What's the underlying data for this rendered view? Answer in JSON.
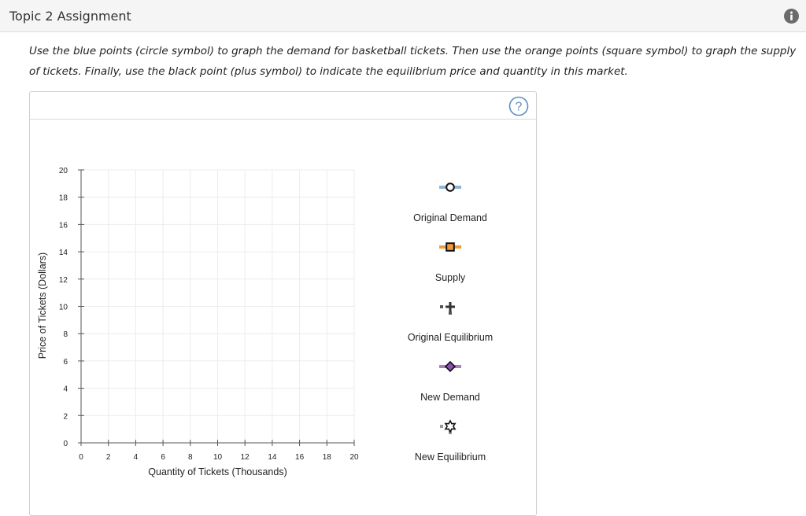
{
  "header": {
    "title": "Topic 2 Assignment",
    "info_icon": "info-icon"
  },
  "instructions": {
    "text": "Use the blue points (circle symbol) to graph the demand for basketball tickets. Then use the orange points (square symbol) to graph the supply of tickets. Finally, use the black point (plus symbol) to indicate the equilibrium price and quantity in this market."
  },
  "panel": {
    "help_icon": "question-circle-icon",
    "help_glyph": "?"
  },
  "chart_data": {
    "type": "scatter",
    "title": "",
    "xlabel": "Quantity of Tickets (Thousands)",
    "ylabel": "Price of Tickets (Dollars)",
    "xlim": [
      0,
      20
    ],
    "ylim": [
      0,
      20
    ],
    "xticks": [
      0,
      2,
      4,
      6,
      8,
      10,
      12,
      14,
      16,
      18,
      20
    ],
    "yticks": [
      0,
      2,
      4,
      6,
      8,
      10,
      12,
      14,
      16,
      18,
      20
    ],
    "grid": true,
    "series": [],
    "legend": [
      {
        "name": "Original Demand",
        "symbol": "circle",
        "line_color": "#8fb4d8",
        "fill": "#ffffff",
        "stroke": "#111111"
      },
      {
        "name": "Supply",
        "symbol": "square",
        "line_color": "#f29a3c",
        "fill": "#f29a3c",
        "stroke": "#111111"
      },
      {
        "name": "Original Equilibrium",
        "symbol": "plus",
        "line_color": "#555555",
        "fill": "#333333",
        "stroke": "#333333"
      },
      {
        "name": "New Demand",
        "symbol": "diamond",
        "line_color": "#b07cc6",
        "fill": "#8e4fb0",
        "stroke": "#111111"
      },
      {
        "name": "New Equilibrium",
        "symbol": "star",
        "line_color": "#9a9a9a",
        "fill": "#ffffff",
        "stroke": "#111111"
      }
    ]
  }
}
